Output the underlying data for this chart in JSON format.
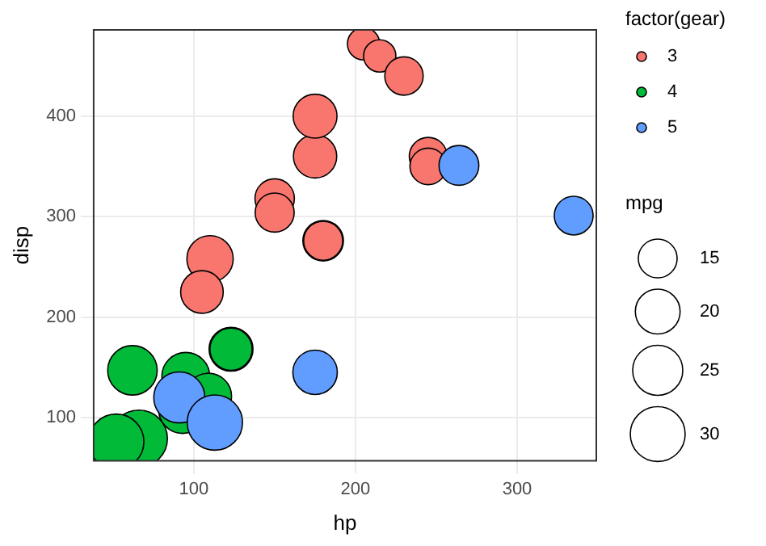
{
  "chart_data": {
    "type": "bubble",
    "xlabel": "hp",
    "ylabel": "disp",
    "legend_title": "factor(gear)",
    "annotations": [
      "mpg"
    ],
    "xlim": [
      38,
      349
    ],
    "ylim": [
      57,
      486
    ],
    "xticks": [
      100,
      200,
      300
    ],
    "yticks": [
      100,
      200,
      300,
      400
    ],
    "grid": true,
    "legend": "right",
    "size_legend": [
      15,
      20,
      25,
      30
    ],
    "series": [
      {
        "name": "3",
        "color": "#f8766d",
        "x": [
          110,
          175,
          105,
          245,
          180,
          180,
          205,
          215,
          230,
          150,
          150,
          245,
          175
        ],
        "values": [
          258,
          360,
          225,
          360,
          276,
          276,
          472,
          460,
          440,
          318,
          304,
          350,
          400
        ],
        "sizes": [
          21.4,
          18.7,
          18.1,
          14.3,
          16.4,
          15.2,
          10.4,
          10.4,
          14.7,
          15.5,
          15.2,
          13.3,
          19.2
        ]
      },
      {
        "name": "4",
        "color": "#00ba38",
        "x": [
          93,
          62,
          95,
          123,
          123,
          66,
          52,
          109
        ],
        "values": [
          108,
          147,
          141,
          168,
          168,
          79,
          76,
          121
        ],
        "sizes": [
          22.8,
          24.4,
          22.8,
          19.2,
          17.8,
          32.4,
          30.4,
          21.4
        ]
      },
      {
        "name": "5",
        "color": "#619cff",
        "x": [
          91,
          113,
          264,
          175,
          335
        ],
        "values": [
          120,
          95,
          351,
          145,
          301
        ],
        "sizes": [
          26,
          30.4,
          15.8,
          19.7,
          15
        ]
      }
    ]
  }
}
